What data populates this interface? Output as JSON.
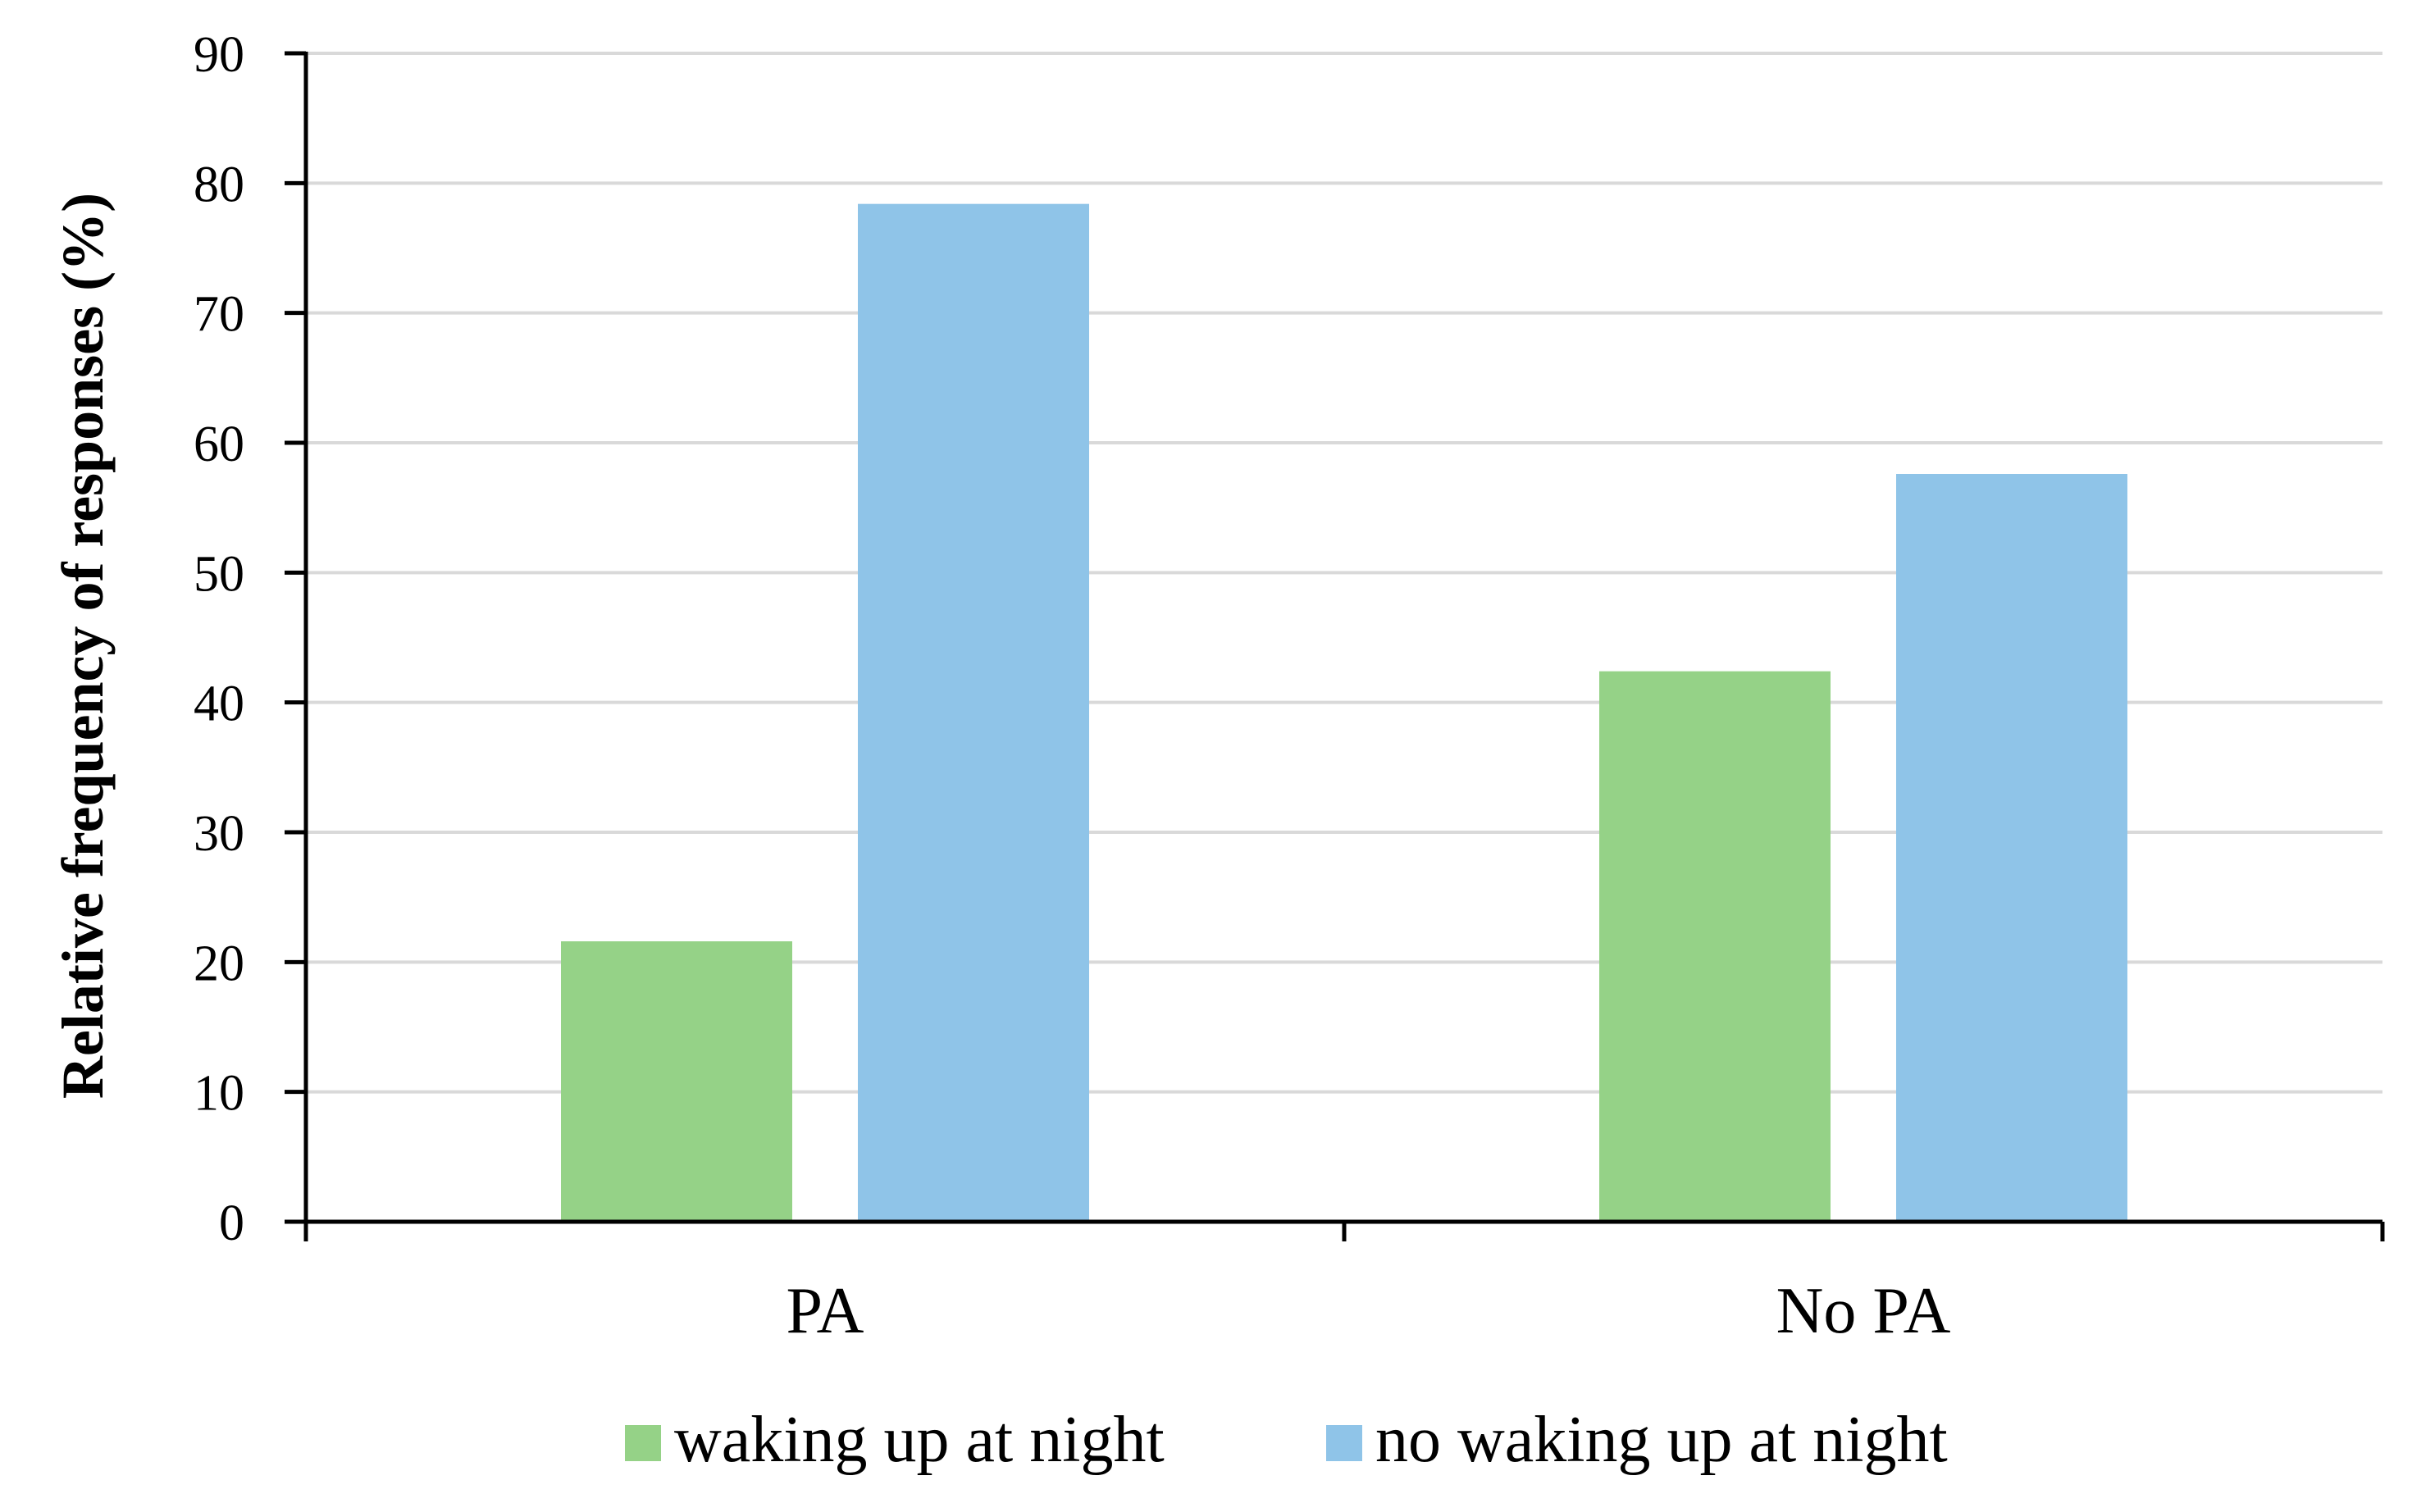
{
  "chart_data": {
    "type": "bar",
    "title": "",
    "xlabel": "",
    "ylabel": "Relative frequency of responses (%)",
    "categories": [
      "PA",
      "No PA"
    ],
    "series": [
      {
        "name": "waking up at night",
        "values": [
          21.6,
          42.4
        ],
        "color": "#95d287"
      },
      {
        "name": "no waking up at night",
        "values": [
          78.4,
          57.6
        ],
        "color": "#8fc4e8"
      }
    ],
    "ylim": [
      0,
      90
    ],
    "yticks": [
      0,
      10,
      20,
      30,
      40,
      50,
      60,
      70,
      80,
      90
    ],
    "grid": true,
    "legend_position": "bottom"
  }
}
